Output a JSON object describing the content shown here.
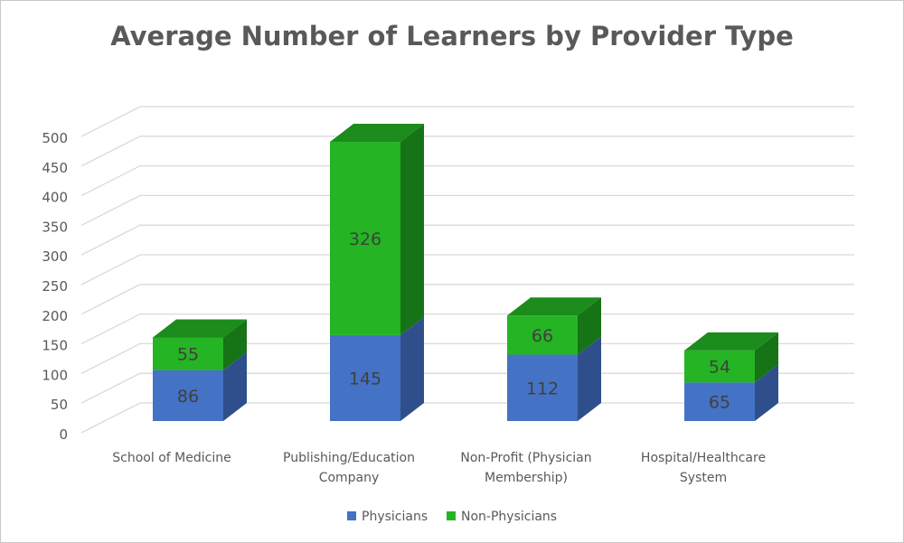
{
  "chart_data": {
    "type": "bar",
    "stacked": true,
    "three_d": true,
    "title": "Average Number of Learners by Provider Type",
    "xlabel": "",
    "ylabel": "",
    "ylim": [
      0,
      500
    ],
    "y_ticks": [
      "0",
      "50",
      "100",
      "150",
      "200",
      "250",
      "300",
      "350",
      "400",
      "450",
      "500"
    ],
    "categories": [
      [
        "School of Medicine"
      ],
      [
        "Publishing/Education",
        "Company"
      ],
      [
        "Non-Profit (Physician",
        "Membership)"
      ],
      [
        "Hospital/Healthcare",
        "System"
      ]
    ],
    "series": [
      {
        "name": "Physicians",
        "values": [
          86,
          145,
          112,
          65
        ],
        "color": "#4472c4",
        "side_color": "#2f4f8c",
        "top_color": "#3a64b0"
      },
      {
        "name": "Non-Physicians",
        "values": [
          55,
          326,
          66,
          54
        ],
        "color": "#24b424",
        "side_color": "#167316",
        "top_color": "#1c8c1c"
      }
    ],
    "grid": true,
    "legend_position": "bottom"
  }
}
